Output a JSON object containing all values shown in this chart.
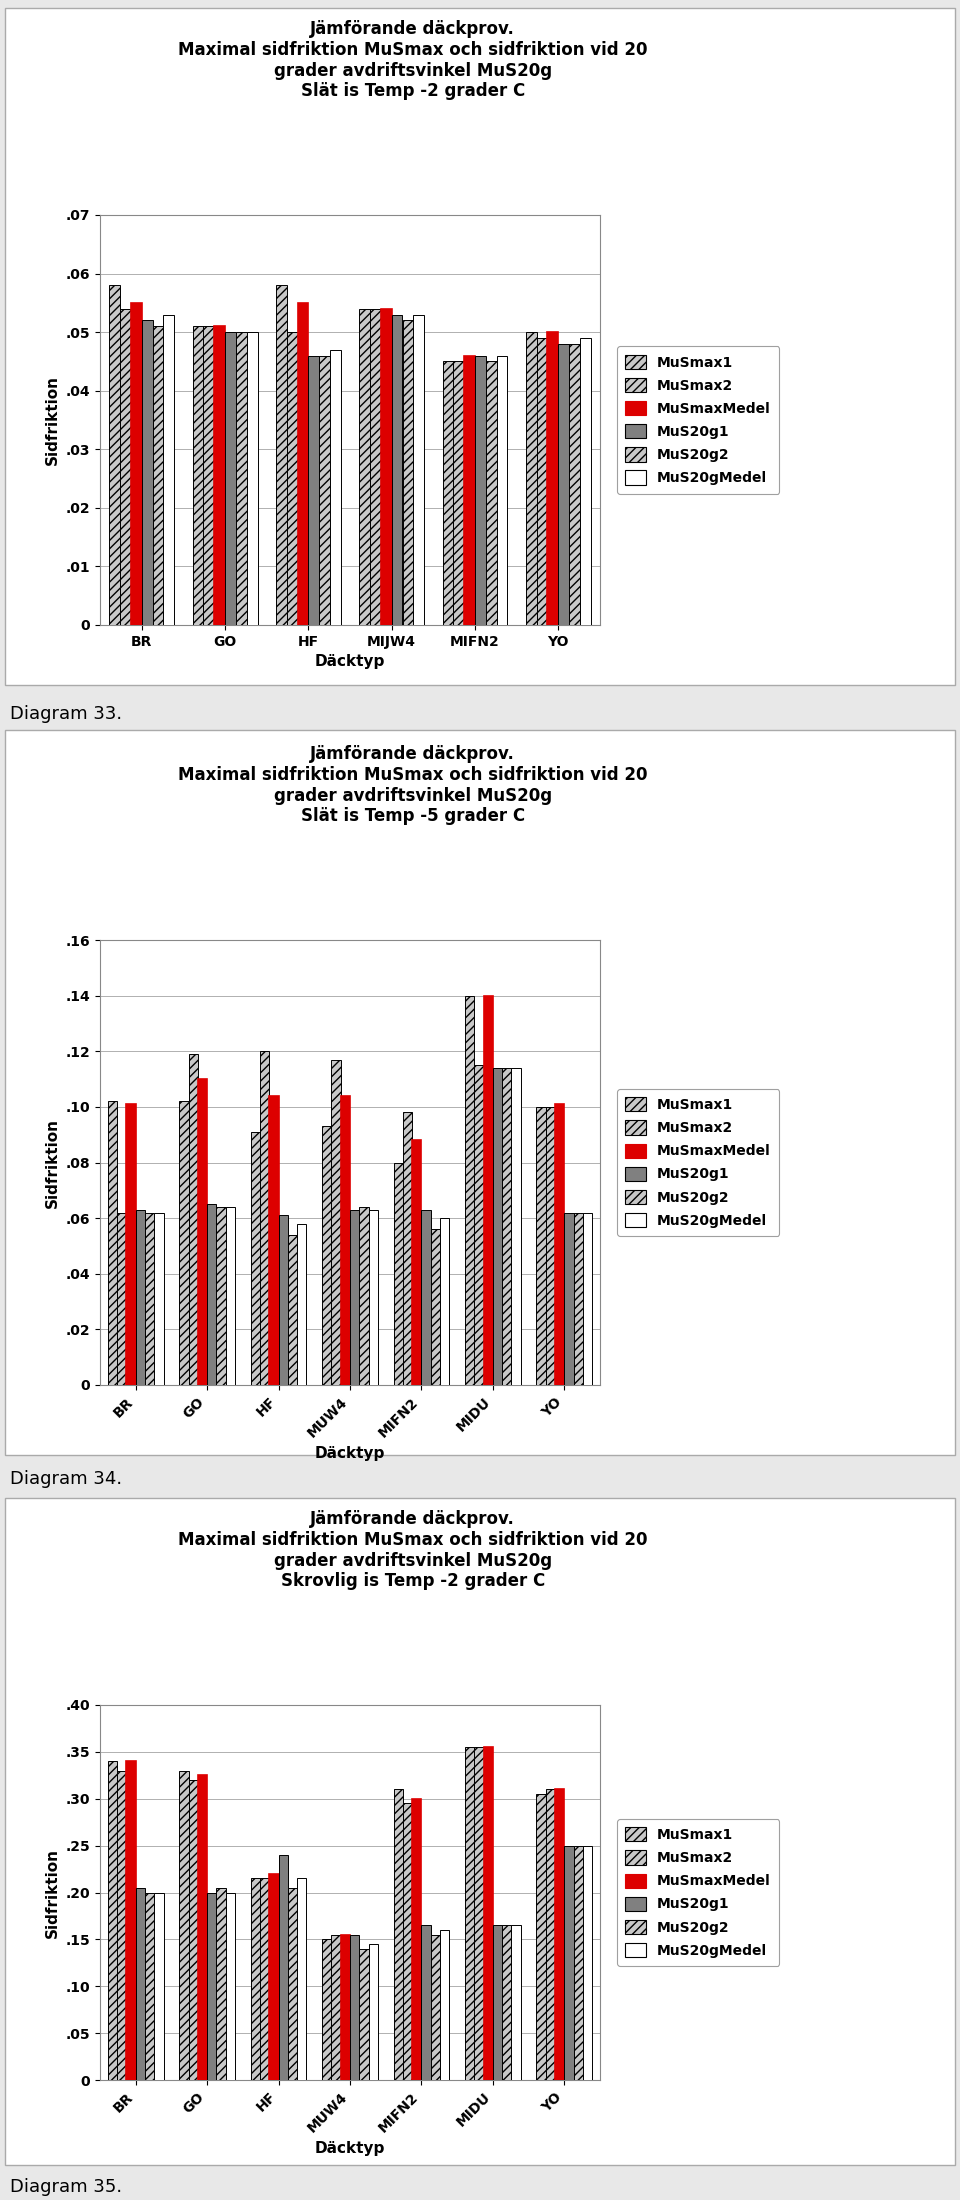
{
  "charts": [
    {
      "title": "Jämförande däckprov.\nMaximal sidfriktion MuSmax och sidfriktion vid 20\ngrader avdriftsvinkel MuS20g\nSlät is Temp -2 grader C",
      "categories": [
        "BR",
        "GO",
        "HF",
        "MIJW4",
        "MIFN2",
        "YO"
      ],
      "ylim": [
        0,
        0.07
      ],
      "yticks": [
        0,
        0.01,
        0.02,
        0.03,
        0.04,
        0.05,
        0.06,
        0.07
      ],
      "rotate_xlabels": false,
      "data": {
        "MuSmax1": [
          0.058,
          0.051,
          0.058,
          0.054,
          0.045,
          0.05
        ],
        "MuSmax2": [
          0.054,
          0.051,
          0.05,
          0.054,
          0.045,
          0.049
        ],
        "MuSmaxMedel": [
          0.055,
          0.051,
          0.055,
          0.054,
          0.046,
          0.05
        ],
        "MuS20g1": [
          0.052,
          0.05,
          0.046,
          0.053,
          0.046,
          0.048
        ],
        "MuS20g2": [
          0.051,
          0.05,
          0.046,
          0.052,
          0.045,
          0.048
        ],
        "MuS20gMedel": [
          0.053,
          0.05,
          0.047,
          0.053,
          0.046,
          0.049
        ]
      },
      "diagram_label": "Diagram 33."
    },
    {
      "title": "Jämförande däckprov.\nMaximal sidfriktion MuSmax och sidfriktion vid 20\ngrader avdriftsvinkel MuS20g\nSlät is Temp -5 grader C",
      "categories": [
        "BR",
        "GO",
        "HF",
        "MUW4",
        "MIFN2",
        "MIDU",
        "YO"
      ],
      "ylim": [
        0,
        0.16
      ],
      "yticks": [
        0,
        0.02,
        0.04,
        0.06,
        0.08,
        0.1,
        0.12,
        0.14,
        0.16
      ],
      "rotate_xlabels": true,
      "data": {
        "MuSmax1": [
          0.102,
          0.102,
          0.091,
          0.093,
          0.08,
          0.14,
          0.1
        ],
        "MuSmax2": [
          0.062,
          0.119,
          0.12,
          0.117,
          0.098,
          0.115,
          0.1
        ],
        "MuSmaxMedel": [
          0.101,
          0.11,
          0.104,
          0.104,
          0.088,
          0.14,
          0.101
        ],
        "MuS20g1": [
          0.063,
          0.065,
          0.061,
          0.063,
          0.063,
          0.114,
          0.062
        ],
        "MuS20g2": [
          0.062,
          0.064,
          0.054,
          0.064,
          0.056,
          0.114,
          0.062
        ],
        "MuS20gMedel": [
          0.062,
          0.064,
          0.058,
          0.063,
          0.06,
          0.114,
          0.062
        ]
      },
      "diagram_label": "Diagram 34."
    },
    {
      "title": "Jämförande däckprov.\nMaximal sidfriktion MuSmax och sidfriktion vid 20\ngrader avdriftsvinkel MuS20g\nSkrovlig is Temp -2 grader C",
      "categories": [
        "BR",
        "GO",
        "HF",
        "MUW4",
        "MIFN2",
        "MIDU",
        "YO"
      ],
      "ylim": [
        0,
        0.4
      ],
      "yticks": [
        0,
        0.05,
        0.1,
        0.15,
        0.2,
        0.25,
        0.3,
        0.35,
        0.4
      ],
      "rotate_xlabels": true,
      "data": {
        "MuSmax1": [
          0.34,
          0.33,
          0.215,
          0.15,
          0.31,
          0.355,
          0.305
        ],
        "MuSmax2": [
          0.33,
          0.32,
          0.215,
          0.155,
          0.295,
          0.355,
          0.31
        ],
        "MuSmaxMedel": [
          0.34,
          0.325,
          0.22,
          0.155,
          0.3,
          0.355,
          0.31
        ],
        "MuS20g1": [
          0.205,
          0.2,
          0.24,
          0.155,
          0.165,
          0.165,
          0.25
        ],
        "MuS20g2": [
          0.2,
          0.205,
          0.205,
          0.14,
          0.155,
          0.165,
          0.25
        ],
        "MuS20gMedel": [
          0.2,
          0.2,
          0.215,
          0.145,
          0.16,
          0.165,
          0.25
        ]
      },
      "diagram_label": "Diagram 35."
    }
  ],
  "series_names": [
    "MuSmax1",
    "MuSmax2",
    "MuSmaxMedel",
    "MuS20g1",
    "MuS20g2",
    "MuS20gMedel"
  ],
  "bar_colors": {
    "MuSmax1": "#c8c8c8",
    "MuSmax2": "#c8c8c8",
    "MuSmaxMedel": "#dd0000",
    "MuS20g1": "#808080",
    "MuS20g2": "#c8c8c8",
    "MuS20gMedel": "#ffffff"
  },
  "bar_hatches": {
    "MuSmax1": "////",
    "MuSmax2": "////",
    "MuSmaxMedel": "",
    "MuS20g1": "",
    "MuS20g2": "////",
    "MuS20gMedel": ""
  },
  "bar_edgecolors": {
    "MuSmax1": "#000000",
    "MuSmax2": "#000000",
    "MuSmaxMedel": "#dd0000",
    "MuS20g1": "#000000",
    "MuS20g2": "#000000",
    "MuS20gMedel": "#000000"
  },
  "ylabel": "Sidfriktion",
  "xlabel": "Däcktyp",
  "background_color": "#f0f0f0"
}
